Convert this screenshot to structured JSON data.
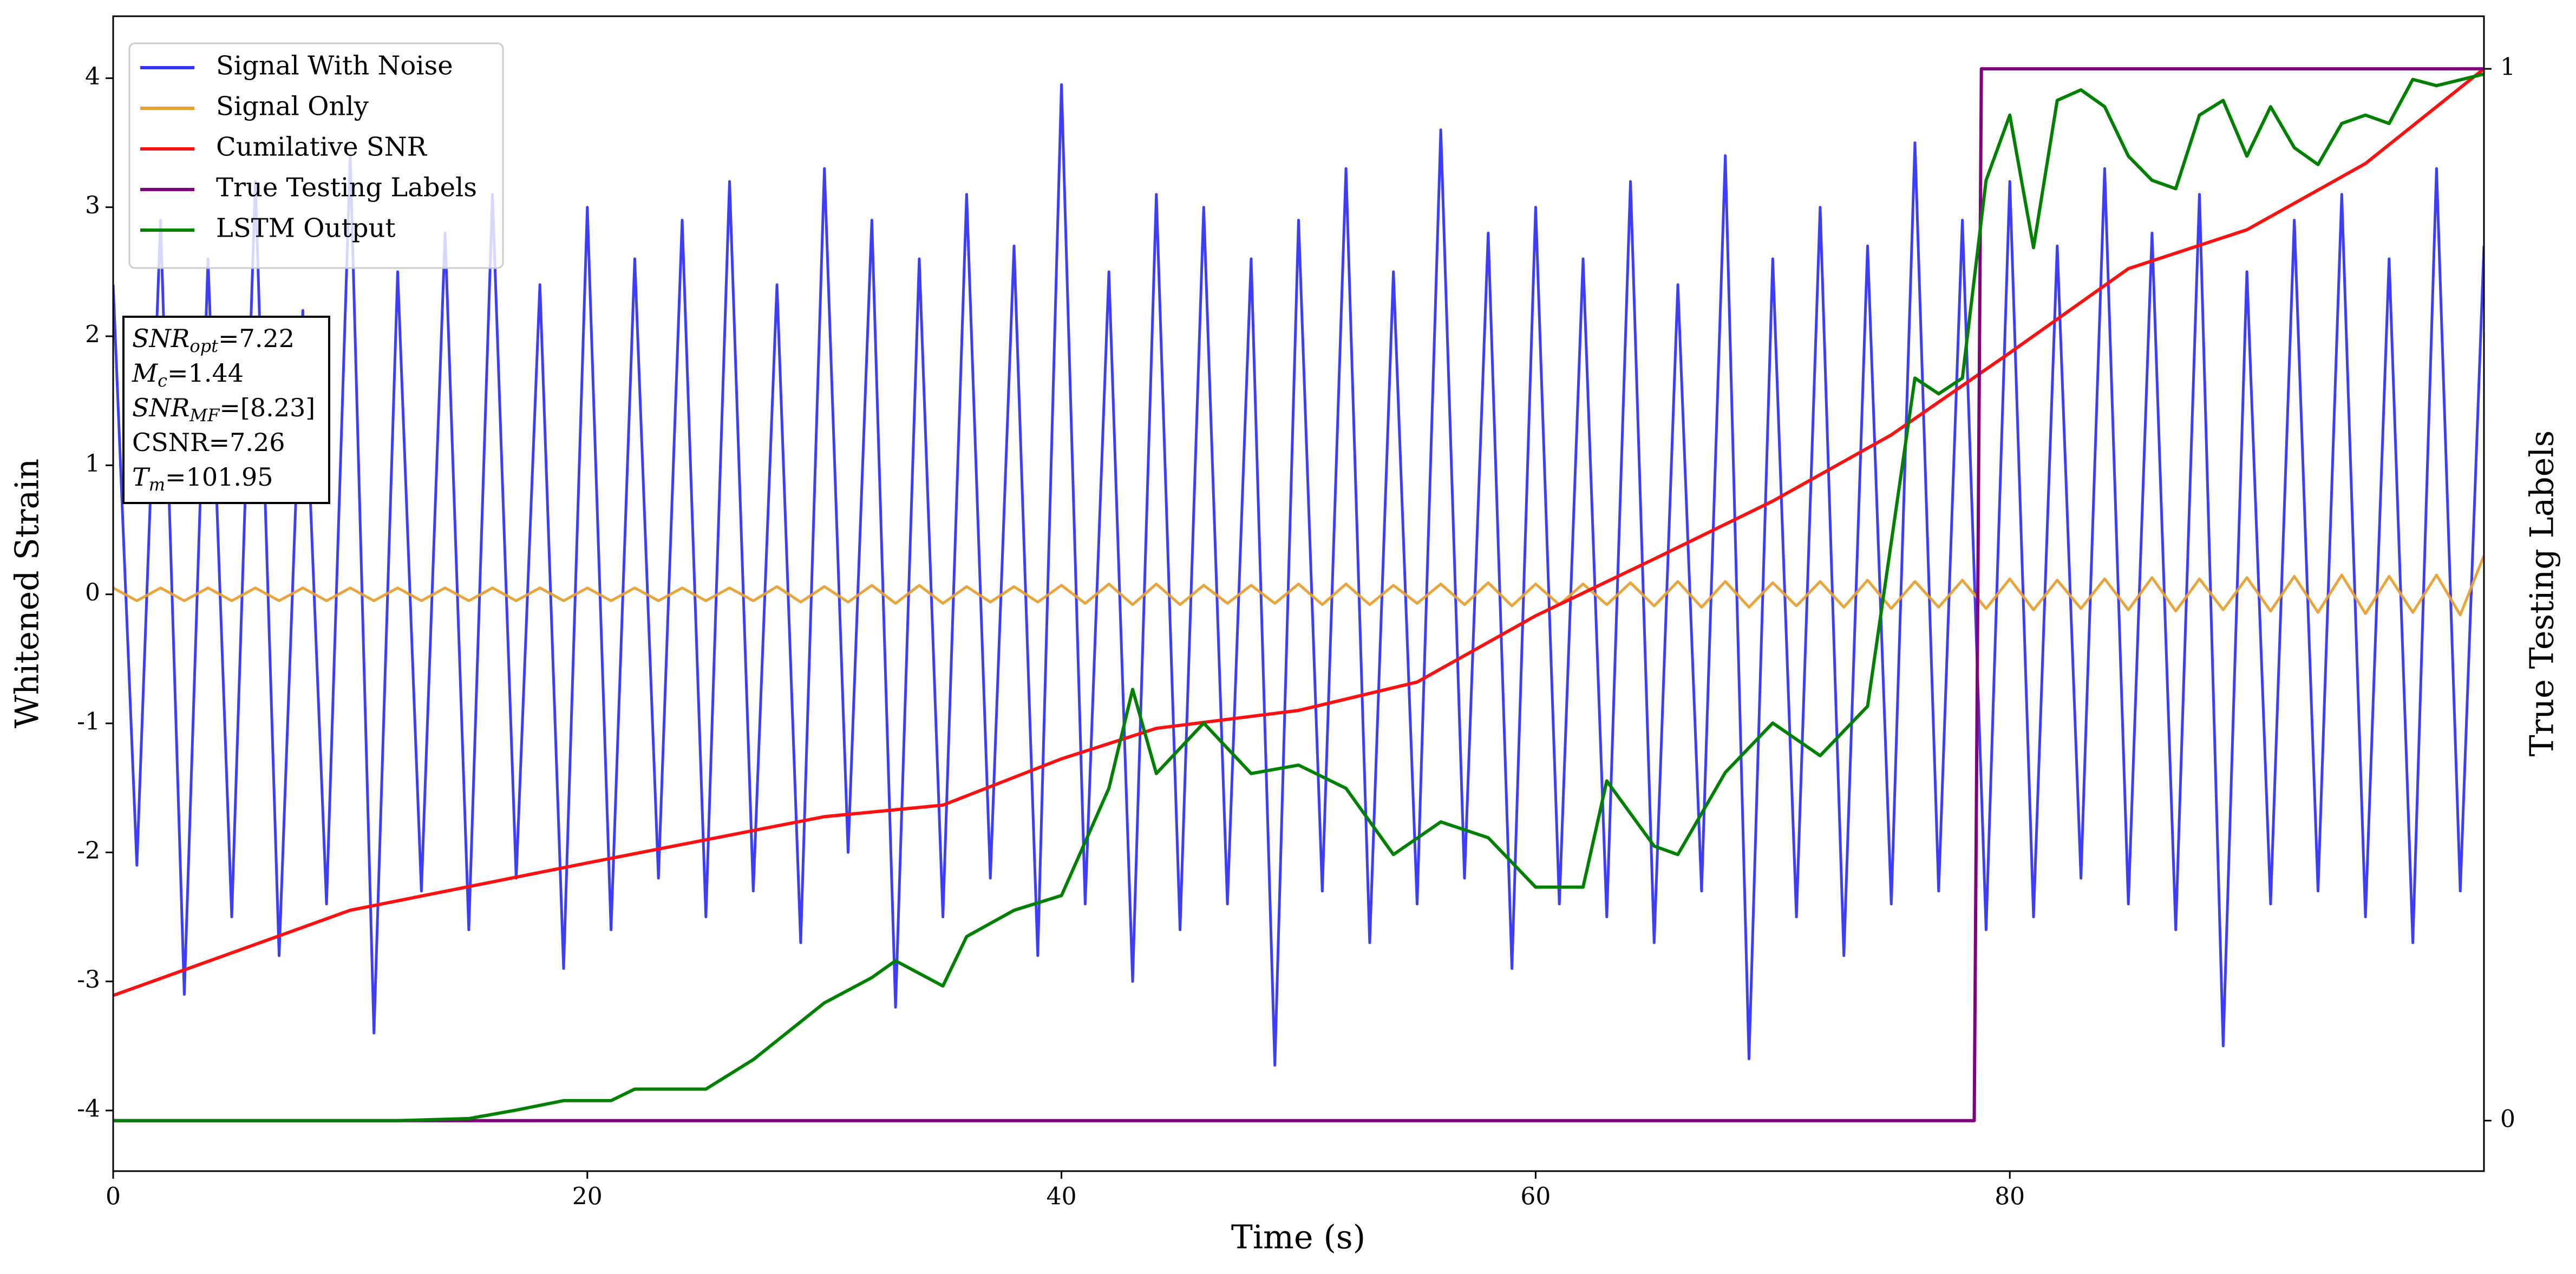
{
  "chart_data": {
    "type": "line",
    "xlabel": "Time (s)",
    "ylabel": "Whitened Strain",
    "y2label": "True Testing Labels",
    "xlim": [
      0,
      100
    ],
    "xticks": [
      0,
      20,
      40,
      60,
      80
    ],
    "ylim": [
      -4.47,
      4.48
    ],
    "yticks": [
      -4,
      -3,
      -2,
      -1,
      0,
      1,
      2,
      3,
      4
    ],
    "y2lim": [
      -0.048,
      1.05
    ],
    "y2ticks": [
      0,
      1
    ],
    "legend": "upper left",
    "annotation": [
      [
        "SNR",
        "opt",
        "=7.22"
      ],
      [
        "M",
        "c",
        "=1.44"
      ],
      [
        "SNR",
        "MF",
        "=[8.23]"
      ],
      [
        "CSNR=7.26"
      ],
      [
        "T",
        "m",
        "=101.95"
      ]
    ],
    "x": [
      0,
      1,
      2,
      3,
      4,
      5,
      6,
      7,
      8,
      9,
      10,
      11,
      12,
      13,
      14,
      15,
      16,
      17,
      18,
      19,
      20,
      21,
      22,
      23,
      24,
      25,
      26,
      27,
      28,
      29,
      30,
      31,
      32,
      33,
      34,
      35,
      36,
      37,
      38,
      39,
      40,
      41,
      42,
      43,
      44,
      45,
      46,
      47,
      48,
      49,
      50,
      51,
      52,
      53,
      54,
      55,
      56,
      57,
      58,
      59,
      60,
      61,
      62,
      63,
      64,
      65,
      66,
      67,
      68,
      69,
      70,
      71,
      72,
      73,
      74,
      75,
      76,
      77,
      78,
      79,
      80,
      81,
      82,
      83,
      84,
      85,
      86,
      87,
      88,
      89,
      90,
      91,
      92,
      93,
      94,
      95,
      96,
      97,
      98,
      99,
      100
    ],
    "series": [
      {
        "name": "Signal With Noise",
        "color": "#3333ff",
        "values": [
          2.4,
          -2.1,
          2.9,
          -3.1,
          2.6,
          -2.5,
          3.2,
          -2.8,
          2.2,
          -2.4,
          3.4,
          -3.4,
          2.5,
          -2.3,
          2.8,
          -2.6,
          3.1,
          -2.2,
          2.4,
          -2.9,
          3.0,
          -2.6,
          2.6,
          -2.2,
          2.9,
          -2.5,
          3.2,
          -2.3,
          2.4,
          -2.7,
          3.3,
          -2.0,
          2.9,
          -3.2,
          2.6,
          -2.5,
          3.1,
          -2.2,
          2.7,
          -2.8,
          3.95,
          -2.4,
          2.5,
          -3.0,
          3.1,
          -2.6,
          3.0,
          -2.4,
          2.6,
          -3.65,
          2.9,
          -2.3,
          3.3,
          -2.7,
          2.5,
          -2.4,
          3.6,
          -2.2,
          2.8,
          -2.9,
          3.0,
          -2.4,
          2.6,
          -2.5,
          3.2,
          -2.7,
          2.4,
          -2.3,
          3.4,
          -3.6,
          2.6,
          -2.5,
          3.0,
          -2.8,
          2.7,
          -2.4,
          3.5,
          -2.3,
          2.9,
          -2.6,
          3.2,
          -2.5,
          2.7,
          -2.2,
          3.3,
          -2.4,
          2.8,
          -2.6,
          3.1,
          -3.5,
          2.5,
          -2.4,
          2.9,
          -2.3,
          3.1,
          -2.5,
          2.6,
          -2.7,
          3.3,
          -2.3,
          2.7
        ]
      },
      {
        "name": "Signal Only",
        "color": "#e8a030",
        "values": [
          0.05,
          -0.05,
          0.05,
          -0.05,
          0.05,
          -0.05,
          0.05,
          -0.05,
          0.05,
          -0.05,
          0.05,
          -0.05,
          0.05,
          -0.05,
          0.05,
          -0.05,
          0.05,
          -0.05,
          0.05,
          -0.05,
          0.05,
          -0.05,
          0.05,
          -0.05,
          0.05,
          -0.05,
          0.05,
          -0.05,
          0.06,
          -0.06,
          0.06,
          -0.06,
          0.07,
          -0.07,
          0.07,
          -0.07,
          0.06,
          -0.06,
          0.06,
          -0.06,
          0.07,
          -0.07,
          0.08,
          -0.08,
          0.08,
          -0.08,
          0.07,
          -0.07,
          0.07,
          -0.07,
          0.08,
          -0.08,
          0.08,
          -0.08,
          0.07,
          -0.07,
          0.08,
          -0.08,
          0.09,
          -0.09,
          0.08,
          -0.08,
          0.08,
          -0.08,
          0.09,
          -0.09,
          0.1,
          -0.1,
          0.1,
          -0.1,
          0.09,
          -0.09,
          0.1,
          -0.1,
          0.11,
          -0.11,
          0.1,
          -0.1,
          0.11,
          -0.11,
          0.12,
          -0.12,
          0.11,
          -0.11,
          0.12,
          -0.12,
          0.13,
          -0.13,
          0.12,
          -0.12,
          0.13,
          -0.13,
          0.14,
          -0.14,
          0.15,
          -0.15,
          0.14,
          -0.14,
          0.15,
          -0.16,
          0.3
        ]
      },
      {
        "name": "Cumilative SNR",
        "color": "#ff1010",
        "axis": "y2",
        "x": [
          0,
          10,
          20,
          30,
          35,
          40,
          44,
          50,
          55,
          60,
          65,
          70,
          75,
          80,
          85,
          90,
          95,
          100
        ],
        "values": [
          0.119,
          0.2,
          0.245,
          0.289,
          0.3,
          0.344,
          0.373,
          0.39,
          0.417,
          0.48,
          0.534,
          0.589,
          0.652,
          0.73,
          0.81,
          0.847,
          0.91,
          1.0
        ]
      },
      {
        "name": "True Testing Labels",
        "color": "#800080",
        "axis": "y2",
        "x": [
          0,
          78.5,
          78.8,
          100
        ],
        "values": [
          0,
          0,
          1,
          1
        ]
      },
      {
        "name": "LSTM Output",
        "color": "#008000",
        "axis": "y2",
        "x": [
          0,
          12,
          15,
          17,
          19,
          21,
          22,
          25,
          27,
          30,
          32,
          33,
          35,
          36,
          38,
          40,
          42,
          43,
          44,
          46,
          48,
          50,
          52,
          54,
          56,
          58,
          60,
          62,
          63,
          65,
          66,
          68,
          70,
          72,
          74,
          75,
          76,
          77,
          78,
          79,
          80,
          81,
          82,
          83,
          84,
          85,
          86,
          87,
          88,
          89,
          90,
          91,
          92,
          93,
          94,
          95,
          96,
          97,
          98,
          100
        ],
        "values": [
          0,
          0,
          0.002,
          0.01,
          0.019,
          0.019,
          0.03,
          0.03,
          0.058,
          0.112,
          0.136,
          0.152,
          0.128,
          0.175,
          0.2,
          0.214,
          0.316,
          0.41,
          0.33,
          0.378,
          0.33,
          0.338,
          0.316,
          0.253,
          0.284,
          0.269,
          0.222,
          0.222,
          0.323,
          0.261,
          0.253,
          0.331,
          0.378,
          0.347,
          0.394,
          0.55,
          0.706,
          0.691,
          0.706,
          0.894,
          0.956,
          0.83,
          0.97,
          0.98,
          0.964,
          0.917,
          0.894,
          0.886,
          0.956,
          0.97,
          0.917,
          0.964,
          0.925,
          0.909,
          0.948,
          0.956,
          0.948,
          0.99,
          0.984,
          0.995
        ]
      }
    ]
  }
}
